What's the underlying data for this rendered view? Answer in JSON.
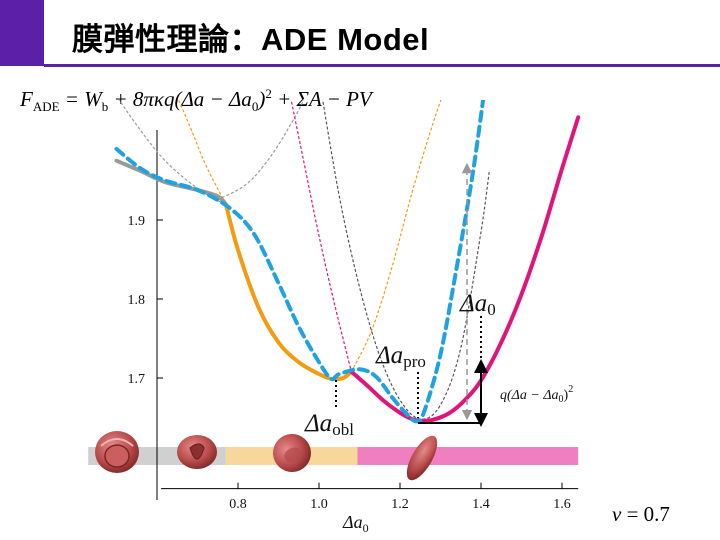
{
  "title": "膜弾性理論：ADE Model",
  "formula": {
    "lhs_symbol": "F",
    "lhs_sub": "ADE",
    "rhs_pre": " = W",
    "rhs_wsub": "b",
    "rhs_mid": " + 8πκq(Δa − Δa",
    "rhs_asub": "0",
    "rhs_close": ")",
    "rhs_sup": "2",
    "rhs_post": " + ΣA − PV"
  },
  "nu_label": {
    "symbol": "ν",
    "value": " = 0.7"
  },
  "chart_data": {
    "type": "line",
    "title": "",
    "xlabel": "Δa",
    "xlabel_sub": "0",
    "ylabel": "",
    "xlim": [
      0.61,
      1.64
    ],
    "ylim": [
      1.56,
      2.0
    ],
    "x_ticks": [
      0.8,
      1.0,
      1.2,
      1.4,
      1.6
    ],
    "x_tick_labels": [
      "0.8",
      "1.0",
      "1.2",
      "1.4",
      "1.6"
    ],
    "y_ticks": [
      1.7,
      1.8,
      1.9
    ],
    "y_tick_labels": [
      "1.7",
      "1.8",
      "1.9"
    ],
    "series": [
      {
        "style": "solid-gray",
        "color": "#999999",
        "x": [
          0.5,
          0.56,
          0.62,
          0.7,
          0.75,
          0.77
        ],
        "y": [
          1.975,
          1.962,
          1.948,
          1.938,
          1.93,
          1.92
        ]
      },
      {
        "style": "solid-orange",
        "color": "#f39c12",
        "x": [
          0.77,
          0.8,
          0.85,
          0.9,
          0.95,
          1.0,
          1.03,
          1.06,
          1.08
        ],
        "y": [
          1.92,
          1.862,
          1.79,
          1.745,
          1.72,
          1.705,
          1.699,
          1.7,
          1.708
        ]
      },
      {
        "style": "solid-magenta",
        "color": "#e0157a",
        "x": [
          1.08,
          1.12,
          1.16,
          1.2,
          1.23,
          1.25,
          1.28,
          1.32,
          1.36,
          1.4,
          1.45,
          1.5,
          1.55,
          1.6,
          1.64
        ],
        "y": [
          1.708,
          1.69,
          1.671,
          1.656,
          1.648,
          1.646,
          1.647,
          1.655,
          1.672,
          1.697,
          1.745,
          1.806,
          1.88,
          1.965,
          2.03
        ]
      },
      {
        "style": "dashed-blue",
        "color": "#1fa2e1",
        "x": [
          0.5,
          0.56,
          0.62,
          0.7,
          0.78,
          0.84,
          0.9,
          0.95,
          1.0,
          1.03,
          1.05,
          1.1,
          1.14,
          1.18,
          1.21,
          1.24,
          1.26,
          1.3,
          1.34,
          1.38,
          1.41
        ],
        "y": [
          1.99,
          1.965,
          1.95,
          1.938,
          1.915,
          1.882,
          1.82,
          1.765,
          1.72,
          1.699,
          1.705,
          1.711,
          1.702,
          1.676,
          1.658,
          1.645,
          1.658,
          1.73,
          1.84,
          1.96,
          2.07
        ]
      },
      {
        "style": "dotted-gray-left",
        "color": "#9a9a9a",
        "x": [
          0.47,
          0.55,
          0.62,
          0.7,
          0.76
        ],
        "y": [
          2.08,
          2.02,
          1.975,
          1.94,
          1.922
        ]
      },
      {
        "style": "dotted-gray-right",
        "color": "#9a9a9a",
        "x": [
          0.75,
          0.82,
          0.88,
          0.94,
          0.99
        ],
        "y": [
          1.926,
          1.945,
          1.98,
          2.03,
          2.08
        ]
      },
      {
        "style": "dotted-orange",
        "color": "#f39c12",
        "x": [
          0.63,
          0.68,
          0.72,
          0.77
        ],
        "y": [
          2.08,
          2.02,
          1.97,
          1.92
        ]
      },
      {
        "style": "dotted-orange-right",
        "color": "#f39c12",
        "x": [
          1.08,
          1.13,
          1.18,
          1.23,
          1.28,
          1.32
        ],
        "y": [
          1.708,
          1.76,
          1.84,
          1.935,
          2.02,
          2.08
        ]
      },
      {
        "style": "dotted-magenta",
        "color": "#e0157a",
        "x": [
          0.92,
          0.96,
          1.0,
          1.04,
          1.08
        ],
        "y": [
          2.08,
          1.98,
          1.88,
          1.79,
          1.708
        ]
      },
      {
        "style": "dotted-black-parabola",
        "color": "#555555",
        "x": [
          1.0,
          1.05,
          1.1,
          1.15,
          1.2,
          1.25,
          1.3,
          1.35,
          1.4,
          1.42
        ],
        "y": [
          2.08,
          1.93,
          1.815,
          1.728,
          1.672,
          1.648,
          1.666,
          1.738,
          1.885,
          1.96
        ]
      }
    ],
    "annotations": {
      "delta_a0": {
        "symbol": "Δa",
        "sub": "0"
      },
      "delta_a_pro": {
        "symbol": "Δa",
        "sub": "pro"
      },
      "delta_a_obl": {
        "symbol": "Δa",
        "sub": "obl"
      },
      "q_term": {
        "pre": "q(Δa − Δa",
        "sub": "0",
        "close": ")",
        "sup": "2"
      }
    },
    "phase_bar": [
      {
        "phase": "stomatocyte",
        "x0": 0.43,
        "x1": 0.77,
        "color": "#d0d0d0"
      },
      {
        "phase": "oblate",
        "x0": 0.77,
        "x1": 1.095,
        "color": "#f8d89a"
      },
      {
        "phase": "prolate",
        "x0": 1.095,
        "x1": 1.64,
        "color": "#ef7fc0"
      }
    ]
  }
}
